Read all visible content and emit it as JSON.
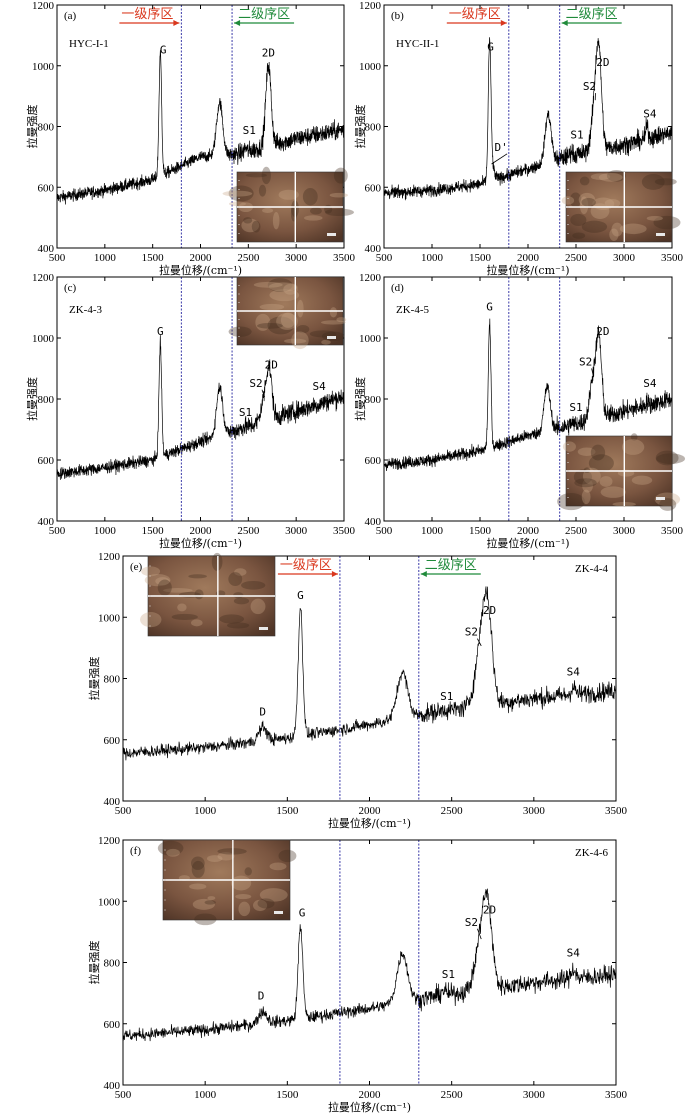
{
  "colors": {
    "region1": "#d9381e",
    "region2": "#1f8a3a",
    "vline": "#3a3aa8",
    "spectrum": "#000000"
  },
  "chart_data": [
    {
      "type": "line",
      "panel": "(a)",
      "sample": "HYC-I-1",
      "xlabel": "拉曼位移/(cm⁻¹)",
      "ylabel": "拉曼强度",
      "xlim": [
        500,
        3500
      ],
      "ylim": [
        400,
        1200
      ],
      "xticks": [
        500,
        1000,
        1500,
        2000,
        2500,
        3000,
        3500
      ],
      "yticks": [
        400,
        600,
        800,
        1000,
        1200
      ],
      "region_boundaries": [
        1800,
        2330
      ],
      "region_labels": [
        "一级序区",
        "二级序区"
      ],
      "baseline": [
        [
          500,
          565
        ],
        [
          1000,
          590
        ],
        [
          1500,
          625
        ],
        [
          2000,
          700
        ],
        [
          2400,
          710
        ],
        [
          3000,
          760
        ],
        [
          3500,
          790
        ]
      ],
      "peaks": [
        {
          "label": "G",
          "x": 1580,
          "y": 1040
        },
        {
          "label": "",
          "x": 2200,
          "y": 880
        },
        {
          "label": "2D",
          "x": 2710,
          "y": 1000
        },
        {
          "label": "S1",
          "x": 2470,
          "y": 730
        }
      ],
      "annotations": [
        {
          "text": "G",
          "x": 1610,
          "y": 1040
        },
        {
          "text": "2D",
          "x": 2710,
          "y": 1030
        },
        {
          "text": "S1",
          "x": 2510,
          "y": 775
        }
      ],
      "inset": "top-right"
    },
    {
      "type": "line",
      "panel": "(b)",
      "sample": "HYC-II-1",
      "xlabel": "拉曼位移/(cm⁻¹)",
      "ylabel": "拉曼强度",
      "xlim": [
        500,
        3500
      ],
      "ylim": [
        400,
        1200
      ],
      "xticks": [
        500,
        1000,
        1500,
        2000,
        2500,
        3000,
        3500
      ],
      "yticks": [
        400,
        600,
        800,
        1000,
        1200
      ],
      "region_boundaries": [
        1800,
        2330
      ],
      "region_labels": [
        "一级序区",
        "二级序区"
      ],
      "baseline": [
        [
          500,
          580
        ],
        [
          1000,
          590
        ],
        [
          1500,
          610
        ],
        [
          2000,
          660
        ],
        [
          2400,
          700
        ],
        [
          3000,
          740
        ],
        [
          3500,
          780
        ]
      ],
      "peaks": [
        {
          "label": "G",
          "x": 1600,
          "y": 1050
        },
        {
          "label": "D'",
          "x": 1620,
          "y": 670
        },
        {
          "label": "",
          "x": 2210,
          "y": 840
        },
        {
          "label": "2D",
          "x": 2740,
          "y": 990
        },
        {
          "label": "S2",
          "x": 2700,
          "y": 880
        },
        {
          "label": "S1",
          "x": 2450,
          "y": 720
        },
        {
          "label": "S4",
          "x": 3240,
          "y": 800
        }
      ],
      "annotations": [
        {
          "text": "G",
          "x": 1610,
          "y": 1050
        },
        {
          "text": "D'",
          "x": 1720,
          "y": 720
        },
        {
          "text": "2D",
          "x": 2780,
          "y": 1000
        },
        {
          "text": "S2",
          "x": 2640,
          "y": 920
        },
        {
          "text": "S1",
          "x": 2510,
          "y": 760
        },
        {
          "text": "S4",
          "x": 3270,
          "y": 830
        }
      ],
      "inset": "middle-right"
    },
    {
      "type": "line",
      "panel": "(c)",
      "sample": "ZK-4-3",
      "xlabel": "拉曼位移/(cm⁻¹)",
      "ylabel": "拉曼强度",
      "xlim": [
        500,
        3500
      ],
      "ylim": [
        400,
        1200
      ],
      "xticks": [
        500,
        1000,
        1500,
        2000,
        2500,
        3000,
        3500
      ],
      "yticks": [
        400,
        600,
        800,
        1000,
        1200
      ],
      "region_boundaries": [
        1800,
        2330
      ],
      "region_labels": [],
      "baseline": [
        [
          500,
          555
        ],
        [
          1000,
          575
        ],
        [
          1500,
          600
        ],
        [
          2000,
          660
        ],
        [
          2400,
          700
        ],
        [
          3000,
          760
        ],
        [
          3500,
          810
        ]
      ],
      "peaks": [
        {
          "label": "G",
          "x": 1580,
          "y": 980
        },
        {
          "label": "",
          "x": 2200,
          "y": 840
        },
        {
          "label": "2D",
          "x": 2720,
          "y": 880
        },
        {
          "label": "S2",
          "x": 2670,
          "y": 800
        },
        {
          "label": "S1",
          "x": 2450,
          "y": 710
        },
        {
          "label": "S4",
          "x": 3230,
          "y": 780
        }
      ],
      "annotations": [
        {
          "text": "G",
          "x": 1580,
          "y": 1010
        },
        {
          "text": "2D",
          "x": 2740,
          "y": 900
        },
        {
          "text": "S2",
          "x": 2580,
          "y": 840
        },
        {
          "text": "S1",
          "x": 2470,
          "y": 745
        },
        {
          "text": "S4",
          "x": 3240,
          "y": 830
        }
      ],
      "inset": "top-right"
    },
    {
      "type": "line",
      "panel": "(d)",
      "sample": "ZK-4-5",
      "xlabel": "拉曼位移/(cm⁻¹)",
      "ylabel": "拉曼强度",
      "xlim": [
        500,
        3500
      ],
      "ylim": [
        400,
        1200
      ],
      "xticks": [
        500,
        1000,
        1500,
        2000,
        2500,
        3000,
        3500
      ],
      "yticks": [
        400,
        600,
        800,
        1000,
        1200
      ],
      "region_boundaries": [
        1800,
        2330
      ],
      "region_labels": [],
      "baseline": [
        [
          500,
          585
        ],
        [
          1000,
          600
        ],
        [
          1500,
          630
        ],
        [
          2000,
          680
        ],
        [
          2400,
          710
        ],
        [
          3000,
          760
        ],
        [
          3500,
          800
        ]
      ],
      "peaks": [
        {
          "label": "G",
          "x": 1600,
          "y": 1040
        },
        {
          "label": "",
          "x": 2200,
          "y": 840
        },
        {
          "label": "2D",
          "x": 2740,
          "y": 980
        },
        {
          "label": "S2",
          "x": 2680,
          "y": 870
        },
        {
          "label": "S1",
          "x": 2450,
          "y": 720
        },
        {
          "label": "S4",
          "x": 3240,
          "y": 790
        }
      ],
      "annotations": [
        {
          "text": "G",
          "x": 1600,
          "y": 1090
        },
        {
          "text": "2D",
          "x": 2780,
          "y": 1010
        },
        {
          "text": "S2",
          "x": 2600,
          "y": 910
        },
        {
          "text": "S1",
          "x": 2500,
          "y": 760
        },
        {
          "text": "S4",
          "x": 3270,
          "y": 840
        }
      ],
      "inset": "middle-right"
    },
    {
      "type": "line",
      "panel": "(e)",
      "sample": "ZK-4-4",
      "xlabel": "拉曼位移/(cm⁻¹)",
      "ylabel": "拉曼强度",
      "xlim": [
        500,
        3500
      ],
      "ylim": [
        400,
        1200
      ],
      "xticks": [
        500,
        1000,
        1500,
        2000,
        2500,
        3000,
        3500
      ],
      "yticks": [
        400,
        600,
        800,
        1000,
        1200
      ],
      "region_boundaries": [
        1820,
        2300
      ],
      "region_labels": [
        "一级序区",
        "二级序区"
      ],
      "baseline": [
        [
          500,
          555
        ],
        [
          1000,
          575
        ],
        [
          1500,
          605
        ],
        [
          2000,
          650
        ],
        [
          2400,
          690
        ],
        [
          3000,
          735
        ],
        [
          3500,
          760
        ]
      ],
      "peaks": [
        {
          "label": "D",
          "x": 1350,
          "y": 640
        },
        {
          "label": "G",
          "x": 1580,
          "y": 1030
        },
        {
          "label": "",
          "x": 2200,
          "y": 820
        },
        {
          "label": "2D",
          "x": 2720,
          "y": 970
        },
        {
          "label": "S2",
          "x": 2680,
          "y": 900
        },
        {
          "label": "S1",
          "x": 2450,
          "y": 700
        },
        {
          "label": "S4",
          "x": 3240,
          "y": 770
        }
      ],
      "annotations": [
        {
          "text": "G",
          "x": 1580,
          "y": 1060
        },
        {
          "text": "D",
          "x": 1350,
          "y": 680
        },
        {
          "text": "2D",
          "x": 2730,
          "y": 1010
        },
        {
          "text": "S2",
          "x": 2620,
          "y": 940
        },
        {
          "text": "S1",
          "x": 2470,
          "y": 730
        },
        {
          "text": "S4",
          "x": 3240,
          "y": 810
        }
      ],
      "inset": "top-left"
    },
    {
      "type": "line",
      "panel": "(f)",
      "sample": "ZK-4-6",
      "xlabel": "拉曼位移/(cm⁻¹)",
      "ylabel": "拉曼强度",
      "xlim": [
        500,
        3500
      ],
      "ylim": [
        400,
        1200
      ],
      "xticks": [
        500,
        1000,
        1500,
        2000,
        2500,
        3000,
        3500
      ],
      "yticks": [
        400,
        600,
        800,
        1000,
        1200
      ],
      "region_boundaries": [
        1820,
        2300
      ],
      "region_labels": [],
      "baseline": [
        [
          500,
          560
        ],
        [
          1000,
          580
        ],
        [
          1500,
          610
        ],
        [
          2000,
          650
        ],
        [
          2400,
          690
        ],
        [
          3000,
          735
        ],
        [
          3500,
          760
        ]
      ],
      "peaks": [
        {
          "label": "D",
          "x": 1350,
          "y": 640
        },
        {
          "label": "G",
          "x": 1580,
          "y": 920
        },
        {
          "label": "",
          "x": 2200,
          "y": 830
        },
        {
          "label": "2D",
          "x": 2720,
          "y": 930
        },
        {
          "label": "S2",
          "x": 2680,
          "y": 870
        },
        {
          "label": "S1",
          "x": 2450,
          "y": 710
        },
        {
          "label": "S4",
          "x": 3240,
          "y": 780
        }
      ],
      "annotations": [
        {
          "text": "G",
          "x": 1590,
          "y": 950
        },
        {
          "text": "D",
          "x": 1340,
          "y": 680
        },
        {
          "text": "2D",
          "x": 2730,
          "y": 960
        },
        {
          "text": "S2",
          "x": 2620,
          "y": 920
        },
        {
          "text": "S1",
          "x": 2480,
          "y": 750
        },
        {
          "text": "S4",
          "x": 3240,
          "y": 820
        }
      ],
      "inset": "top-left"
    }
  ]
}
